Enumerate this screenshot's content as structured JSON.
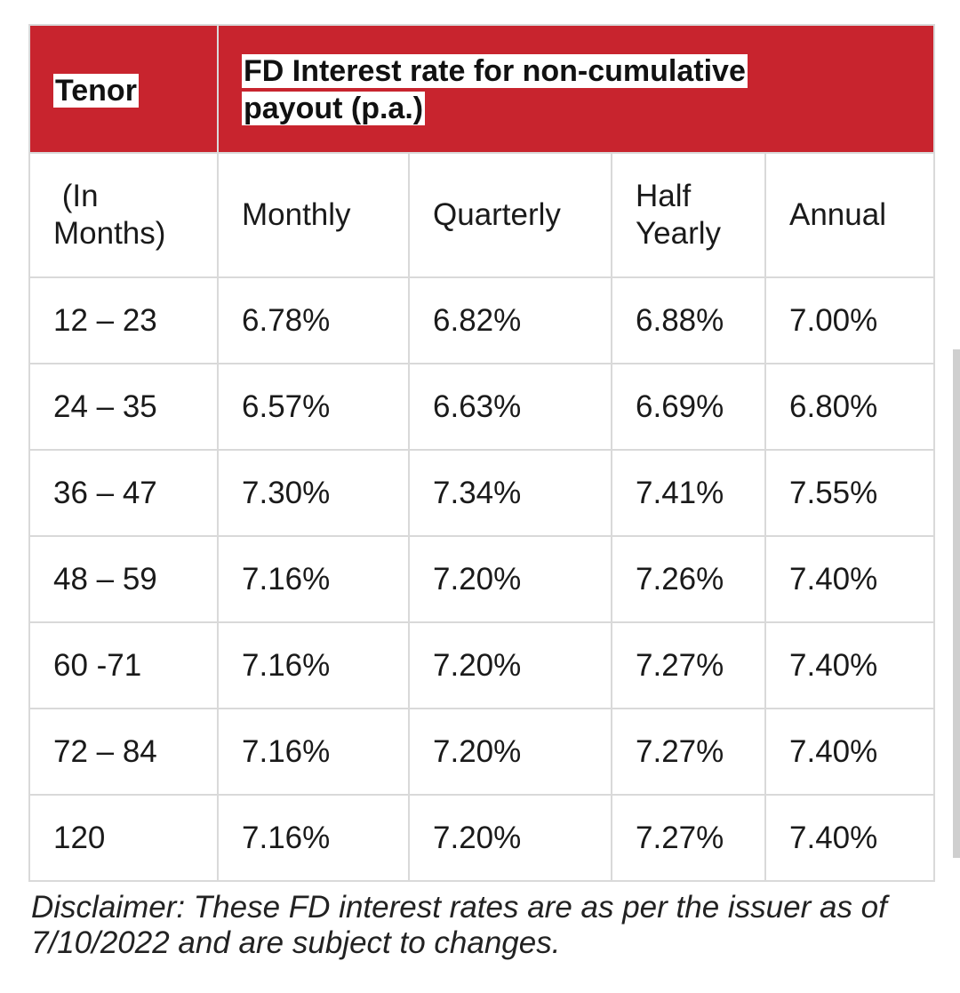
{
  "table": {
    "tenor_header": "Tenor",
    "rate_header": "FD Interest rate for non-cumulative payout  (p.a.)",
    "rate_header_line1": "FD Interest rate for non-cumulative",
    "rate_header_line2": "payout  (p.a.)",
    "sub_header": {
      "unit_line1": "(In",
      "unit_line2": "Months)",
      "monthly": "Monthly",
      "quarterly": "Quarterly",
      "half_line1": "Half",
      "half_line2": "Yearly",
      "annual": "Annual"
    },
    "rows": [
      {
        "tenor": "12 – 23",
        "monthly": "6.78%",
        "quarterly": "6.82%",
        "half_yearly": "6.88%",
        "annual": "7.00%"
      },
      {
        "tenor": "24 – 35",
        "monthly": "6.57%",
        "quarterly": "6.63%",
        "half_yearly": "6.69%",
        "annual": "6.80%"
      },
      {
        "tenor": "36 – 47",
        "monthly": "7.30%",
        "quarterly": "7.34%",
        "half_yearly": "7.41%",
        "annual": "7.55%"
      },
      {
        "tenor": "48 – 59",
        "monthly": "7.16%",
        "quarterly": "7.20%",
        "half_yearly": "7.26%",
        "annual": "7.40%"
      },
      {
        "tenor": "60 -71",
        "monthly": "7.16%",
        "quarterly": "7.20%",
        "half_yearly": "7.27%",
        "annual": "7.40%"
      },
      {
        "tenor": "72 – 84",
        "monthly": "7.16%",
        "quarterly": "7.20%",
        "half_yearly": "7.27%",
        "annual": "7.40%"
      },
      {
        "tenor": "120",
        "monthly": "7.16%",
        "quarterly": "7.20%",
        "half_yearly": "7.27%",
        "annual": "7.40%"
      }
    ]
  },
  "disclaimer": "Disclaimer: These FD interest rates are as per the issuer as of 7/10/2022 and are subject to changes.",
  "colors": {
    "header_red": "#c8242e",
    "grid": "#d9d9d9",
    "text": "#1a1a1a"
  }
}
